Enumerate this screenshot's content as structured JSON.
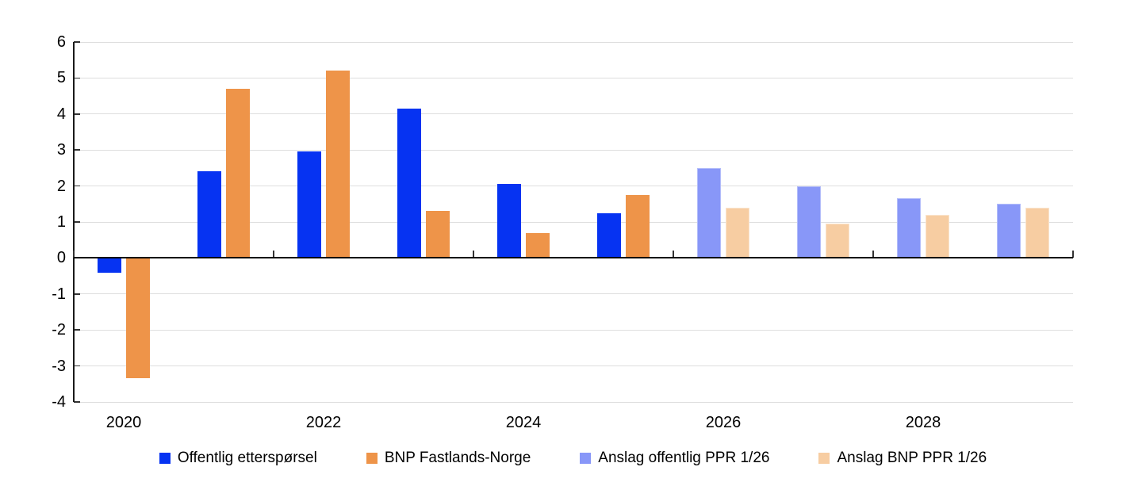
{
  "chart_data": {
    "type": "bar",
    "title": "",
    "xlabel": "",
    "ylabel": "",
    "categories": [
      "2020",
      "2021",
      "2022",
      "2023",
      "2024",
      "2025",
      "2026",
      "2027",
      "2028",
      "2029"
    ],
    "x_tick_labels": [
      "2020",
      "2022",
      "2024",
      "2026",
      "2028"
    ],
    "ylim": [
      -4,
      6
    ],
    "y_ticks": [
      -4,
      -3,
      -2,
      -1,
      0,
      1,
      2,
      3,
      4,
      5,
      6
    ],
    "grid": "horizontal",
    "legend_position": "bottom",
    "series": [
      {
        "name": "Offentlig etterspørsel",
        "color": "#0633f2",
        "values": [
          -0.4,
          2.4,
          2.95,
          4.15,
          2.05,
          1.25,
          null,
          null,
          null,
          null
        ]
      },
      {
        "name": "BNP Fastlands-Norge",
        "color": "#ee9449",
        "values": [
          -3.35,
          4.7,
          5.2,
          1.3,
          0.7,
          1.75,
          null,
          null,
          null,
          null
        ]
      },
      {
        "name": "Anslag offentlig PPR 1/26",
        "color": "#8897f8",
        "values": [
          null,
          null,
          null,
          null,
          null,
          null,
          2.5,
          2.0,
          1.65,
          1.5
        ]
      },
      {
        "name": "Anslag BNP PPR 1/26",
        "color": "#f7cda2",
        "values": [
          null,
          null,
          null,
          null,
          null,
          null,
          1.4,
          0.95,
          1.2,
          1.4
        ]
      }
    ]
  }
}
